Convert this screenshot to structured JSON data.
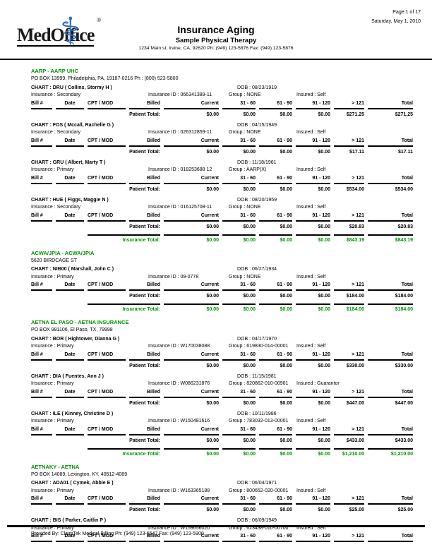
{
  "header": {
    "page_info": {
      "page": "Page 1 of 17",
      "date": "Saturday, May 1, 2010"
    },
    "logo": {
      "text": "MedOffice",
      "registered": "®",
      "caduceus_glyph": "⚕"
    },
    "title": "Insurance Aging",
    "practice": "Sample Physical Therapy",
    "address": "1234 Main st, Irvine, CA, 92620 Ph: (949) 123-5876 Fax: (949) 123-5876"
  },
  "table": {
    "columns": [
      "Bill #",
      "Date",
      "CPT / MOD",
      "Billed",
      "Current",
      "31 - 60",
      "61 - 90",
      "91 - 120",
      "> 121",
      "Total"
    ],
    "patient_total_label": "Patient Total:",
    "insurance_total_label": "Insurance Total:"
  },
  "colors": {
    "section_green": "#009300",
    "logo_blue": "#2F6FBB"
  },
  "sections": [
    {
      "name": "AARP - AARP UHC",
      "address": "PO BOX 13999, Philadelphia, PA, 19187-0216 Ph : (800) 523-5800",
      "patients": [
        {
          "chart": "CHART : DRU ( Collins, Stormy H )",
          "dob": "DOB : 08/23/1919",
          "insurance": "Insurance : Secondary",
          "insurance_id": "Insurance ID : 066341389-11",
          "group": "Group : NONE",
          "insured": "Insured : Self",
          "totals": [
            "$0.00",
            "$0.00",
            "$0.00",
            "$0.00",
            "$271.25",
            "$271.25"
          ]
        },
        {
          "chart": "CHART : FOS ( Mccall, Rachelle G )",
          "dob": "DOB : 04/15/1949",
          "insurance": "Insurance : Secondary",
          "insurance_id": "Insurance ID : 026312859-11",
          "group": "Group : NONE",
          "insured": "Insured : Self",
          "totals": [
            "$0.00",
            "$0.00",
            "$0.00",
            "$0.00",
            "$17.11",
            "$17.11"
          ]
        },
        {
          "chart": "CHART : GRU ( Albert, Marty T )",
          "dob": "DOB : 11/18/1961",
          "insurance": "Insurance : Primary",
          "insurance_id": "Insurance ID : 018253688 12",
          "group": "Group : AARP(X)",
          "insured": "Insured : Self",
          "totals": [
            "$0.00",
            "$0.00",
            "$0.00",
            "$0.00",
            "$534.00",
            "$534.00"
          ]
        },
        {
          "chart": "CHART : HUE ( Figgs, Maggie N )",
          "dob": "DOB : 08/20/1959",
          "insurance": "Insurance : Secondary",
          "insurance_id": "Insurance ID : 016125708-11",
          "group": "Group : NONE",
          "insured": "Insured : Self",
          "totals": [
            "$0.00",
            "$0.00",
            "$0.00",
            "$0.00",
            "$20.83",
            "$20.83"
          ]
        }
      ],
      "insurance_total": [
        "$0.00",
        "$0.00",
        "$0.00",
        "$0.00",
        "$843.19",
        "$843.19"
      ]
    },
    {
      "name": "ACWA/JPIA - ACWA/JPIA",
      "address": "5620 BIRDCAGE ST",
      "patients": [
        {
          "chart": "CHART : NIB00 ( Marshall, John C )",
          "dob": "DOB : 06/27/1934",
          "insurance": "Insurance : Primary",
          "insurance_id": "Insurance ID : 09-0778",
          "group": "Group : NONE",
          "insured": "Insured : Self",
          "totals": [
            "$0.00",
            "$0.00",
            "$0.00",
            "$0.00",
            "$184.00",
            "$184.00"
          ]
        }
      ],
      "insurance_total": [
        "$0.00",
        "$0.00",
        "$0.00",
        "$0.00",
        "$184.00",
        "$184.00"
      ]
    },
    {
      "name": "AETNA EL PASO - AETNA INSURANCE",
      "address": "PO BOX 981106, El Paso, TX, 79998",
      "patients": [
        {
          "chart": "CHART : BOR ( Hightower, Dianna G )",
          "dob": "DOB : 04/17/1970",
          "insurance": "Insurance : Primary",
          "insurance_id": "Insurance ID : W170038088",
          "group": "Group : 619830-014-00001",
          "insured": "Insured : Self",
          "totals": [
            "$0.00",
            "$0.00",
            "$0.00",
            "$0.00",
            "$330.00",
            "$330.00"
          ]
        },
        {
          "chart": "CHART : DIA ( Fuentes, Ann J )",
          "dob": "DOB : 11/15/1981",
          "insurance": "Insurance : Primary",
          "insurance_id": "Insurance ID : W086231876",
          "group": "Group : 820862-010-00901",
          "insured": "Insured : Guarantor",
          "totals": [
            "$0.00",
            "$0.00",
            "$0.00",
            "$0.00",
            "$447.00",
            "$447.00"
          ]
        },
        {
          "chart": "CHART : ILE ( Kinney, Christine D )",
          "dob": "DOB : 10/11/1986",
          "insurance": "Insurance : Primary",
          "insurance_id": "Insurance ID : W150481616",
          "group": "Group : 783032-013-00001",
          "insured": "Insured : Self",
          "totals": [
            "$0.00",
            "$0.00",
            "$0.00",
            "$0.00",
            "$433.00",
            "$433.00"
          ]
        }
      ],
      "insurance_total": [
        "$0.00",
        "$0.00",
        "$0.00",
        "$0.00",
        "$1,210.00",
        "$1,210.00"
      ]
    },
    {
      "name": "AETNAKY - AETNA",
      "address": "PO BOX 14089, Lexington, KY, 40512-4089",
      "patients": [
        {
          "chart": "CHART : ADA01 ( Cymek, Abbie E )",
          "dob": "DOB : 06/04/1971",
          "insurance": "Insurance : Primary",
          "insurance_id": "Insurance ID : W163365188",
          "group": "Group : 800652-020-00001",
          "insured": "Insured : Self",
          "totals": [
            "$0.00",
            "$0.00",
            "$0.00",
            "$0.00",
            "$25.00",
            "$25.00"
          ]
        },
        {
          "chart": "CHART : BIS ( Parker, Caitlin P )",
          "dob": "DOB : 06/09/1949",
          "insurance": "Insurance : Primary",
          "insurance_id": "Insurance ID : W159656020",
          "group": "Group : 623438-010-00700",
          "insured": "Insured : Self",
          "totals": null
        }
      ],
      "insurance_total": null
    }
  ],
  "footer": {
    "provided_by": "Provided By: ClaimTek Medical Billing Ph: (949) 123-6547 Fax: (949) 123-5900"
  }
}
